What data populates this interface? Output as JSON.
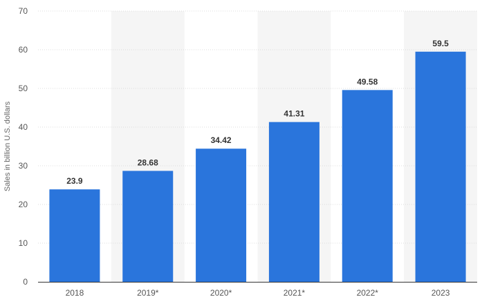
{
  "chart_data": {
    "type": "bar",
    "categories": [
      "2018",
      "2019*",
      "2020*",
      "2021*",
      "2022*",
      "2023"
    ],
    "values": [
      23.9,
      28.68,
      34.42,
      41.31,
      49.58,
      59.5
    ],
    "data_labels": [
      "23.9",
      "28.68",
      "34.42",
      "41.31",
      "49.58",
      "59.5"
    ],
    "title": "",
    "xlabel": "",
    "ylabel": "Sales in billion U.S. dollars",
    "ylim": [
      0,
      70
    ],
    "yticks": [
      0,
      10,
      20,
      30,
      40,
      50,
      60,
      70
    ],
    "grid": true,
    "legend": "none",
    "colors": {
      "bar": "#2a75dc",
      "band": "#f5f5f5",
      "grid": "#dcdcdc",
      "axis": "#333333"
    }
  }
}
